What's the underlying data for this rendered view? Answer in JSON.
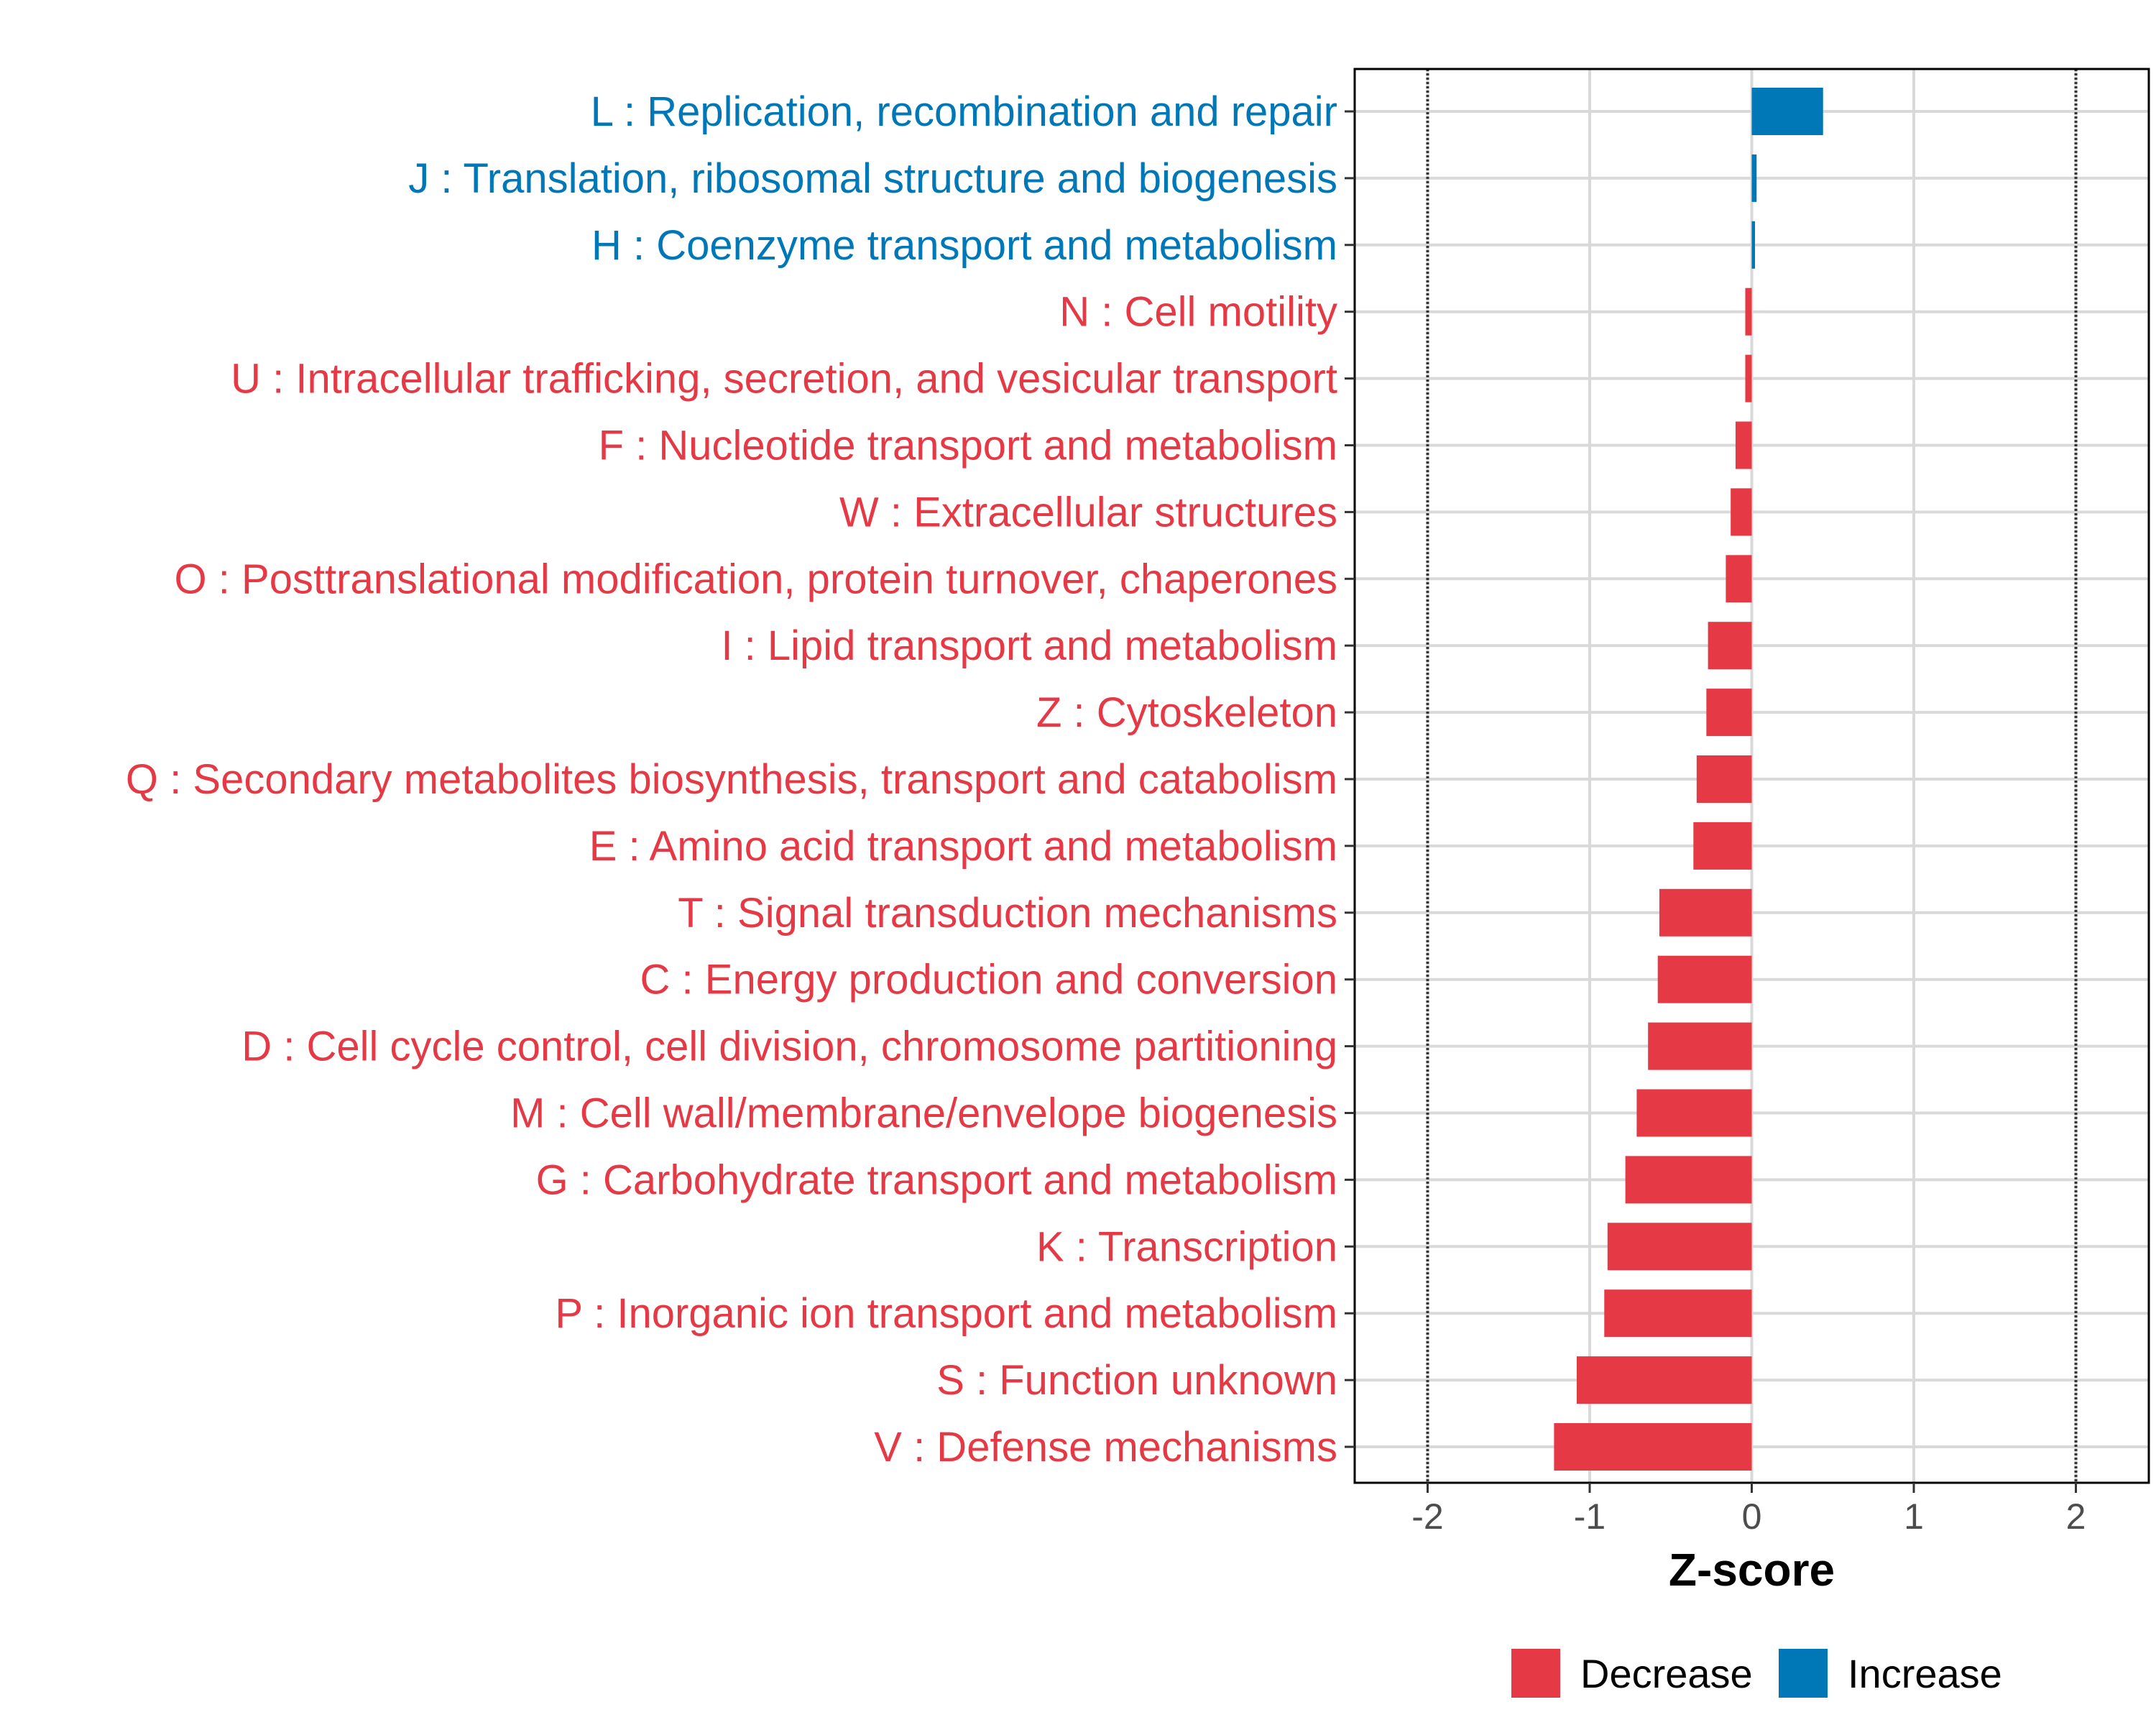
{
  "chart_data": {
    "type": "bar",
    "orientation": "horizontal",
    "categories": [
      "L : Replication, recombination and repair",
      "J : Translation, ribosomal structure and biogenesis",
      "H : Coenzyme transport and metabolism",
      "N : Cell motility",
      "U : Intracellular trafficking, secretion, and vesicular transport",
      "F : Nucleotide transport and metabolism",
      "W : Extracellular structures",
      "O : Posttranslational modification, protein turnover, chaperones",
      "I : Lipid transport and metabolism",
      "Z : Cytoskeleton",
      "Q : Secondary metabolites biosynthesis, transport and catabolism",
      "E : Amino acid transport and metabolism",
      "T : Signal transduction mechanisms",
      "C : Energy production and conversion",
      "D : Cell cycle control, cell division, chromosome partitioning",
      "M : Cell wall/membrane/envelope biogenesis",
      "G : Carbohydrate transport and metabolism",
      "K : Transcription",
      "P : Inorganic ion transport and metabolism",
      "S : Function unknown",
      "V : Defense mechanisms"
    ],
    "values": [
      0.44,
      0.03,
      0.02,
      -0.04,
      -0.04,
      -0.1,
      -0.13,
      -0.16,
      -0.27,
      -0.28,
      -0.34,
      -0.36,
      -0.57,
      -0.58,
      -0.64,
      -0.71,
      -0.78,
      -0.89,
      -0.91,
      -1.08,
      -1.22
    ],
    "groups": [
      "Increase",
      "Increase",
      "Increase",
      "Decrease",
      "Decrease",
      "Decrease",
      "Decrease",
      "Decrease",
      "Decrease",
      "Decrease",
      "Decrease",
      "Decrease",
      "Decrease",
      "Decrease",
      "Decrease",
      "Decrease",
      "Decrease",
      "Decrease",
      "Decrease",
      "Decrease",
      "Decrease"
    ],
    "xlabel": "Z-score",
    "ylabel": "",
    "xlim": [
      -2.45,
      2.45
    ],
    "xticks": [
      -2,
      -1,
      0,
      1,
      2
    ],
    "xtick_labels": [
      "-2",
      "-1",
      "0",
      "1",
      "2"
    ],
    "reference_lines": [
      -2,
      2
    ],
    "grid": true,
    "legend": {
      "position": "bottom-right",
      "entries": [
        {
          "label": "Decrease",
          "color": "#E63946"
        },
        {
          "label": "Increase",
          "color": "#0077B6"
        }
      ]
    },
    "colors": {
      "Decrease": "#E63946",
      "Increase": "#0077B6"
    }
  }
}
